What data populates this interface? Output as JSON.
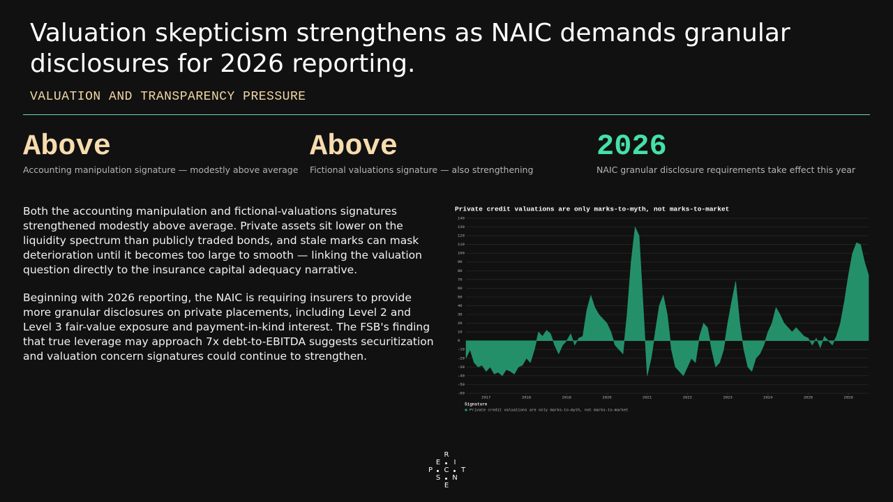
{
  "header": {
    "title": "Valuation skepticism strengthens as NAIC demands granular disclosures for 2026 reporting.",
    "subtitle": "VALUATION AND TRANSPARENCY PRESSURE"
  },
  "stats": [
    {
      "value": "Above",
      "caption": "Accounting manipulation signature — modestly above average"
    },
    {
      "value": "Above",
      "caption": "Fictional valuations signature — also strengthening"
    },
    {
      "value": "2026",
      "caption": "NAIC granular disclosure requirements take effect this year"
    }
  ],
  "body": [
    "Both the accounting manipulation and fictional-valuations signatures strengthened modestly above average. Private assets sit lower on the liquidity spectrum than publicly traded bonds, and stale marks can mask deterioration until it becomes too large to smooth — linking the valuation question directly to the insurance capital adequacy narrative.",
    "Beginning with 2026 reporting, the NAIC is requiring insurers to provide more granular disclosures on private placements, including Level 2 and Level 3 fair-value exposure and payment-in-kind interest. The FSB's finding that true leverage may approach 7x debt-to-EBITDA suggests securitization and valuation concern signatures could continue to strengthen."
  ],
  "chart_data": {
    "type": "area",
    "title": "Private credit valuations are only marks-to-myth, not marks-to-market",
    "legend_title": "Signature",
    "grid": true,
    "xlim": [
      2016.5,
      2026.5
    ],
    "xticks": [
      2017,
      2018,
      2019,
      2020,
      2021,
      2022,
      2023,
      2024,
      2025,
      2026
    ],
    "ylim": [
      -60,
      140
    ],
    "yticks": [
      -60,
      -50,
      -40,
      -30,
      -20,
      -10,
      0,
      10,
      20,
      30,
      40,
      50,
      60,
      70,
      80,
      90,
      100,
      110,
      120,
      130,
      140
    ],
    "x": [
      2016.5,
      2016.6,
      2016.7,
      2016.8,
      2016.9,
      2017.0,
      2017.1,
      2017.2,
      2017.3,
      2017.4,
      2017.5,
      2017.6,
      2017.7,
      2017.8,
      2017.9,
      2018.0,
      2018.1,
      2018.2,
      2018.3,
      2018.4,
      2018.5,
      2018.6,
      2018.7,
      2018.8,
      2018.9,
      2019.0,
      2019.1,
      2019.2,
      2019.3,
      2019.4,
      2019.5,
      2019.6,
      2019.7,
      2019.8,
      2019.9,
      2020.0,
      2020.1,
      2020.2,
      2020.3,
      2020.4,
      2020.5,
      2020.6,
      2020.7,
      2020.8,
      2020.9,
      2021.0,
      2021.1,
      2021.2,
      2021.3,
      2021.4,
      2021.5,
      2021.6,
      2021.7,
      2021.8,
      2021.9,
      2022.0,
      2022.1,
      2022.2,
      2022.3,
      2022.4,
      2022.5,
      2022.6,
      2022.7,
      2022.8,
      2022.9,
      2023.0,
      2023.1,
      2023.2,
      2023.3,
      2023.4,
      2023.5,
      2023.6,
      2023.7,
      2023.8,
      2023.9,
      2024.0,
      2024.1,
      2024.2,
      2024.3,
      2024.4,
      2024.5,
      2024.6,
      2024.7,
      2024.8,
      2024.9,
      2025.0,
      2025.1,
      2025.2,
      2025.3,
      2025.4,
      2025.5,
      2025.6,
      2025.7,
      2025.8,
      2025.9,
      2026.0,
      2026.1,
      2026.2,
      2026.3,
      2026.4,
      2026.5
    ],
    "series": [
      {
        "name": "Private credit valuations are only marks-to-myth, not marks-to-market",
        "color": "#24906a",
        "values": [
          -20,
          -10,
          -25,
          -30,
          -28,
          -35,
          -30,
          -38,
          -36,
          -40,
          -33,
          -35,
          -38,
          -30,
          -28,
          -20,
          -25,
          -10,
          10,
          5,
          12,
          8,
          -5,
          -15,
          -5,
          0,
          8,
          -5,
          3,
          5,
          35,
          52,
          38,
          30,
          25,
          20,
          10,
          -5,
          -10,
          -15,
          30,
          90,
          130,
          120,
          40,
          -40,
          -20,
          10,
          40,
          52,
          30,
          -10,
          -30,
          -35,
          -40,
          -30,
          -20,
          -25,
          5,
          20,
          15,
          -10,
          -30,
          -25,
          -10,
          20,
          45,
          68,
          20,
          -10,
          -30,
          -35,
          -20,
          -15,
          -5,
          10,
          20,
          38,
          30,
          20,
          15,
          10,
          15,
          10,
          5,
          3,
          -5,
          3,
          -8,
          5,
          0,
          -5,
          5,
          20,
          45,
          75,
          100,
          112,
          110,
          90,
          75
        ]
      }
    ]
  },
  "logo": [
    "R",
    "E",
    "I",
    "P",
    "C",
    "T",
    "S",
    "N",
    "E"
  ]
}
